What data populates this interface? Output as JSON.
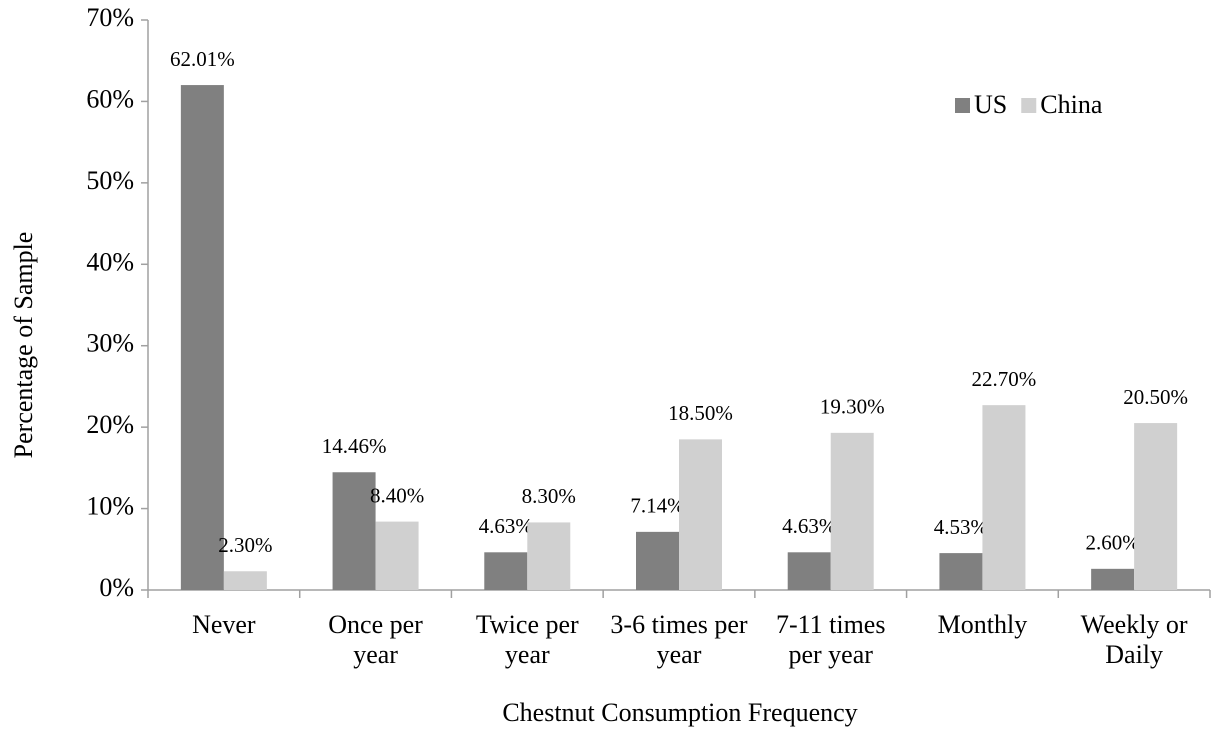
{
  "chart_data": {
    "type": "bar",
    "x_label": "Chestnut Consumption Frequency",
    "y_label": "Percentage of Sample",
    "categories": [
      "Never",
      "Once per year",
      "Twice per year",
      "3-6 times per year",
      "7-11 times per year",
      "Monthly",
      "Weekly or Daily"
    ],
    "series": [
      {
        "name": "US",
        "color": "#808080",
        "values": [
          62.01,
          14.46,
          4.63,
          7.14,
          4.63,
          4.53,
          2.6
        ],
        "value_labels": [
          "62.01%",
          "14.46%",
          "4.63%",
          "7.14%",
          "4.63%",
          "4.53%",
          "2.60%"
        ]
      },
      {
        "name": "China",
        "color": "#d0d0d0",
        "values": [
          2.3,
          8.4,
          8.3,
          18.5,
          19.3,
          22.7,
          20.5
        ],
        "value_labels": [
          "2.30%",
          "8.40%",
          "8.30%",
          "18.50%",
          "19.30%",
          "22.70%",
          "20.50%"
        ]
      }
    ],
    "ylim": [
      0,
      70
    ],
    "yticks": [
      {
        "value": 0,
        "label": "0%"
      },
      {
        "value": 10,
        "label": "10%"
      },
      {
        "value": 20,
        "label": "20%"
      },
      {
        "value": 30,
        "label": "30%"
      },
      {
        "value": 40,
        "label": "40%"
      },
      {
        "value": 50,
        "label": "50%"
      },
      {
        "value": 60,
        "label": "60%"
      },
      {
        "value": 70,
        "label": "70%"
      }
    ],
    "grid": false,
    "legend": "top-right"
  }
}
